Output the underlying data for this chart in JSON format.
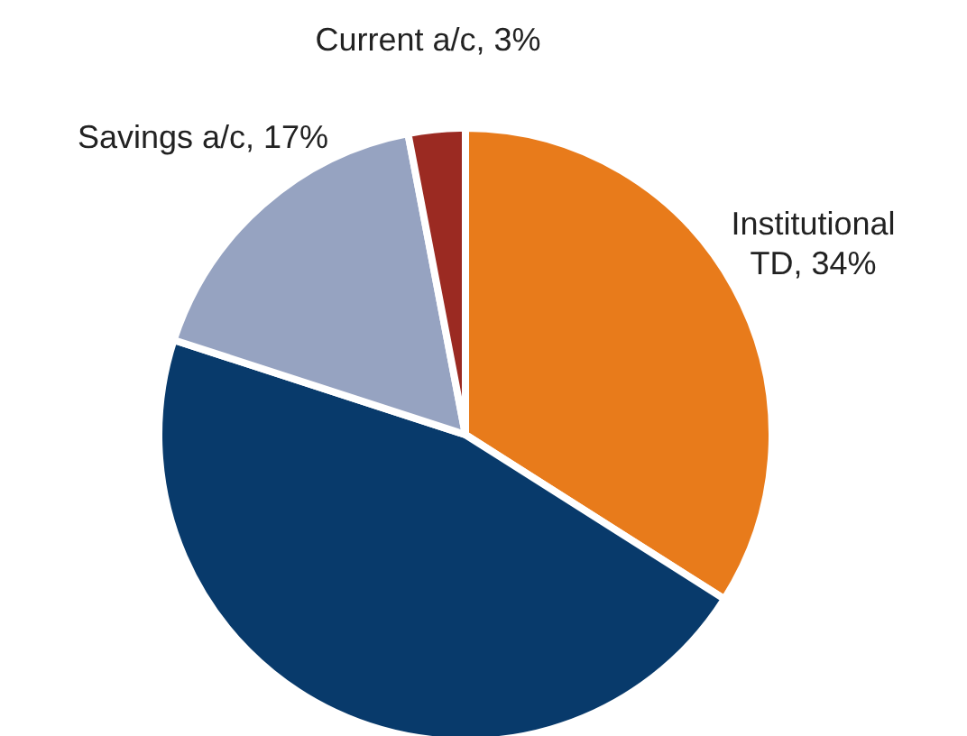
{
  "chart_data": {
    "type": "pie",
    "categories": [
      "Institutional TD",
      null,
      "Savings a/c",
      "Current a/c"
    ],
    "values": [
      34,
      46,
      17,
      3
    ],
    "value_labels": [
      "34%",
      null,
      "17%",
      "3%"
    ],
    "colors": [
      "#e87b1b",
      "#083a6b",
      "#96a3c1",
      "#9b2a22"
    ],
    "legend": false
  }
}
